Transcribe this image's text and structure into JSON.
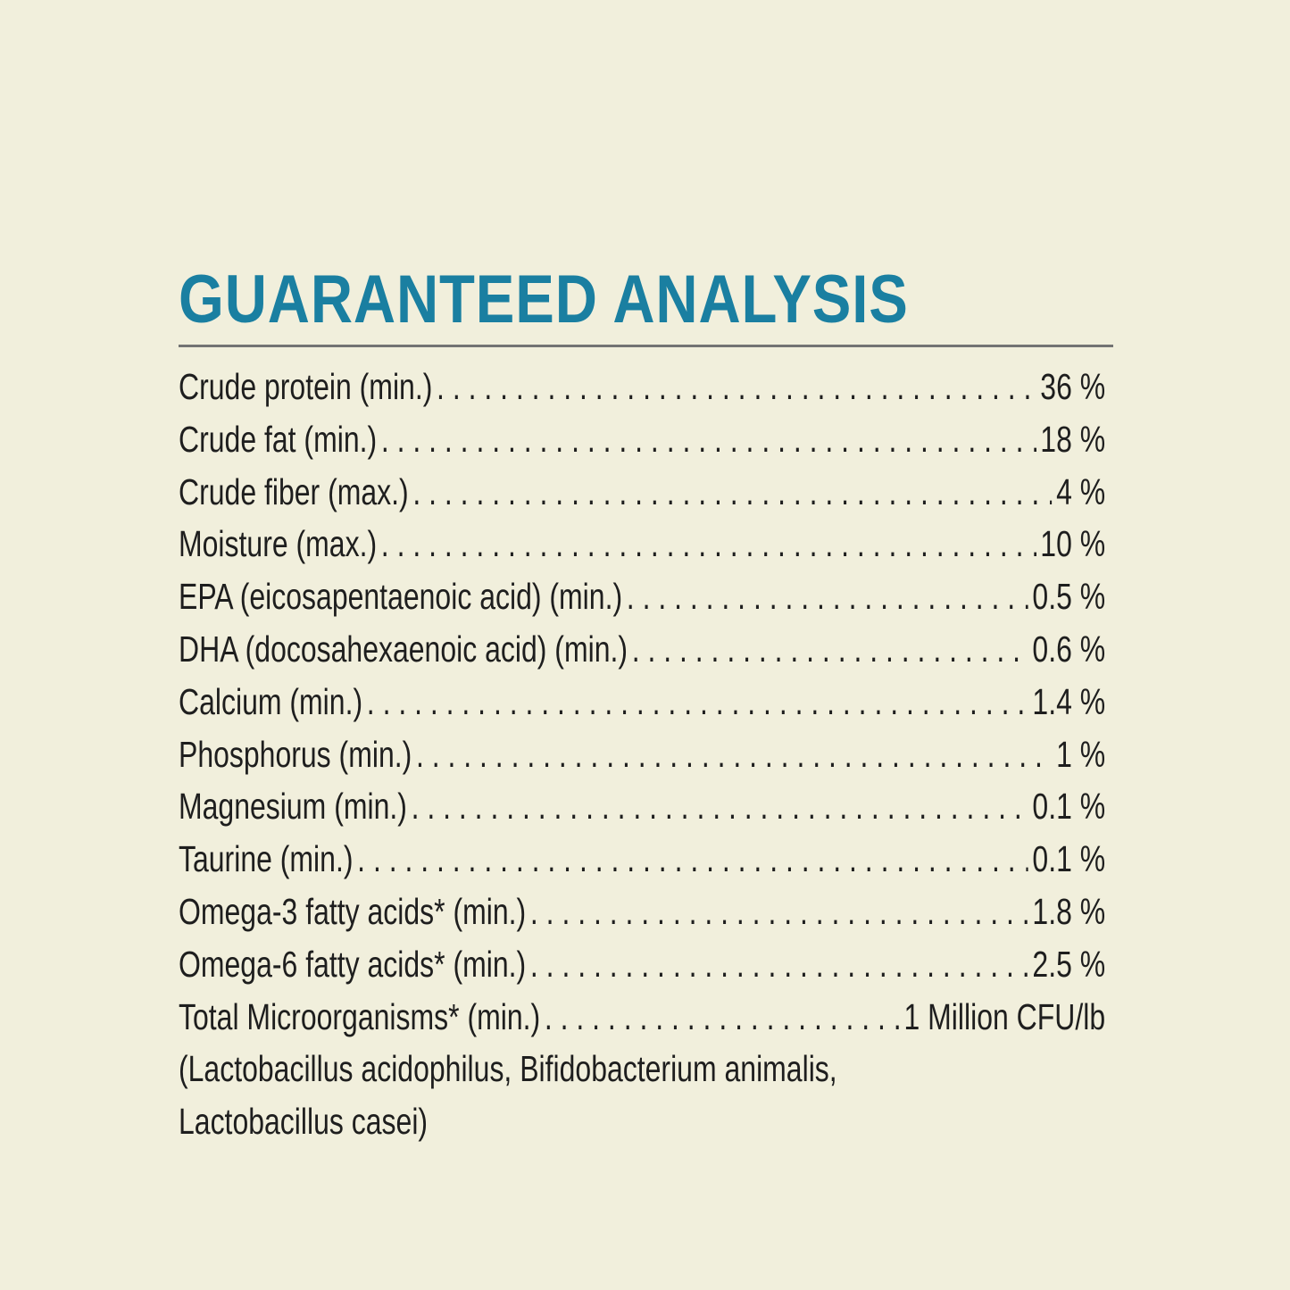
{
  "title": "GUARANTEED ANALYSIS",
  "colors": {
    "background": "#f1efdc",
    "title": "#1a7fa1",
    "text": "#1e1e1e",
    "rule": "#737373"
  },
  "rows": [
    {
      "label": "Crude protein (min.)",
      "value": "36 %"
    },
    {
      "label": "Crude fat (min.)",
      "value": "18 %"
    },
    {
      "label": "Crude fiber (max.)",
      "value": "4 %"
    },
    {
      "label": "Moisture (max.)",
      "value": "10 %"
    },
    {
      "label": "EPA (eicosapentaenoic acid) (min.)",
      "value": "0.5 %"
    },
    {
      "label": "DHA (docosahexaenoic acid) (min.)",
      "value": "0.6 %"
    },
    {
      "label": "Calcium (min.)",
      "value": "1.4 %"
    },
    {
      "label": "Phosphorus (min.)",
      "value": "1 %"
    },
    {
      "label": "Magnesium (min.)",
      "value": "0.1 %"
    },
    {
      "label": "Taurine (min.)",
      "value": "0.1 %"
    },
    {
      "label": "Omega-3 fatty acids* (min.)",
      "value": "1.8 %"
    },
    {
      "label": "Omega-6 fatty acids* (min.)",
      "value": "2.5 %"
    },
    {
      "label": "Total Microorganisms* (min.)",
      "value": "1 Million CFU/lb"
    }
  ],
  "note_lines": [
    "(Lactobacillus acidophilus, Bifidobacterium animalis,",
    "Lactobacillus casei)"
  ]
}
